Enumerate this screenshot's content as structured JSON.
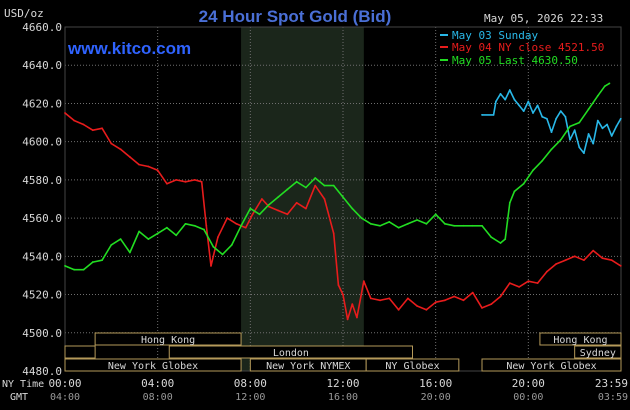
{
  "header": {
    "title": "24 Hour Spot Gold (Bid)",
    "unit": "USD/oz",
    "timestamp": "May 05, 2026 22:33",
    "website": "www.kitco.com"
  },
  "colors": {
    "background": "#000000",
    "grid": "#6f6f6f",
    "title": "#4a6fd6",
    "website": "#2f63ff",
    "text": "#d8d8d8",
    "may03": "#29b8e8",
    "may04": "#e81c1c",
    "may05": "#22dd22",
    "shade": "#1b261b",
    "session_fill": "#000000",
    "session_border": "#b59a5a"
  },
  "legend": {
    "entries": [
      {
        "label": "May 03 Sunday",
        "color": "#29b8e8"
      },
      {
        "label": "May 04 NY close 4521.50",
        "color": "#e81c1c"
      },
      {
        "label": "May 05 Last 4630.50",
        "color": "#22dd22"
      }
    ]
  },
  "axis": {
    "ny_time_label": "NY Time",
    "gmt_label": "GMT",
    "ny_ticks": [
      "00:00",
      "04:00",
      "08:00",
      "12:00",
      "16:00",
      "20:00",
      "23:59"
    ],
    "gmt_ticks": [
      "04:00",
      "08:00",
      "12:00",
      "16:00",
      "20:00",
      "00:00",
      "03:59"
    ]
  },
  "sessions": {
    "row1": [
      {
        "label": "Hong Kong",
        "start": 1.3,
        "end": 7.6
      },
      {
        "label": "Hong Kong",
        "start": 20.5,
        "end": 24
      }
    ],
    "row2": [
      {
        "label": "",
        "start": 0,
        "end": 1.3
      },
      {
        "label": "London",
        "start": 4.5,
        "end": 15.0
      },
      {
        "label": "Sydney",
        "start": 22.0,
        "end": 24
      }
    ],
    "row3": [
      {
        "label": "New York Globex",
        "start": 0,
        "end": 7.6
      },
      {
        "label": "New York NYMEX",
        "start": 8.0,
        "end": 13.0
      },
      {
        "label": "NY Globex",
        "start": 13.0,
        "end": 17.0
      },
      {
        "label": "New York Globex",
        "start": 18.0,
        "end": 24
      }
    ]
  },
  "chart_data": {
    "type": "line",
    "title": "24 Hour Spot Gold (Bid)",
    "ylabel": "USD/oz",
    "xlabel": "",
    "xlim": [
      0,
      24
    ],
    "ylim": [
      4480,
      4660
    ],
    "yticks": [
      4480,
      4500,
      4520,
      4540,
      4560,
      4580,
      4600,
      4620,
      4640,
      4660
    ],
    "ytick_labels": [
      "4480.0",
      "4500.0",
      "4520.0",
      "4540.0",
      "4560.0",
      "4580.0",
      "4600.0",
      "4620.0",
      "4640.0",
      "4660.0"
    ],
    "shaded_region": [
      7.6,
      12.9
    ],
    "grid": true,
    "legend_position": "top-right",
    "series": [
      {
        "name": "May 03 Sunday",
        "color": "#29b8e8",
        "x": [
          18.0,
          18.5,
          18.6,
          18.8,
          19.0,
          19.2,
          19.4,
          19.6,
          19.8,
          20.0,
          20.2,
          20.4,
          20.6,
          20.8,
          21.0,
          21.2,
          21.4,
          21.6,
          21.8,
          22.0,
          22.2,
          22.4,
          22.6,
          22.8,
          23.0,
          23.2,
          23.4,
          23.6,
          23.8,
          23.99
        ],
        "y": [
          4614,
          4614,
          4621,
          4625,
          4622,
          4627,
          4622,
          4619,
          4616,
          4621,
          4615,
          4619,
          4613,
          4612,
          4605,
          4612,
          4616,
          4613,
          4601,
          4606,
          4597,
          4594,
          4604,
          4599,
          4611,
          4607,
          4609,
          4603,
          4608,
          4612
        ]
      },
      {
        "name": "May 04 NY close 4521.50",
        "color": "#e81c1c",
        "x": [
          0,
          0.4,
          0.8,
          1.2,
          1.6,
          2.0,
          2.4,
          2.8,
          3.2,
          3.6,
          4.0,
          4.4,
          4.8,
          5.2,
          5.6,
          5.9,
          6.1,
          6.3,
          6.6,
          7.0,
          7.4,
          7.8,
          8.1,
          8.5,
          8.8,
          9.2,
          9.6,
          10.0,
          10.4,
          10.8,
          11.2,
          11.6,
          11.8,
          12.0,
          12.2,
          12.4,
          12.6,
          12.9,
          13.2,
          13.6,
          14.0,
          14.4,
          14.8,
          15.2,
          15.6,
          16.0,
          16.4,
          16.8,
          17.2,
          17.6,
          18.0,
          18.4,
          18.8,
          19.2,
          19.6,
          20.0,
          20.4,
          20.8,
          21.2,
          21.6,
          22.0,
          22.4,
          22.8,
          23.2,
          23.6,
          23.99
        ],
        "y": [
          4615,
          4611,
          4609,
          4606,
          4607,
          4599,
          4596,
          4592,
          4588,
          4587,
          4585,
          4578,
          4580,
          4579,
          4580,
          4579,
          4556,
          4535,
          4550,
          4560,
          4557,
          4555,
          4562,
          4570,
          4566,
          4564,
          4562,
          4568,
          4565,
          4577,
          4570,
          4552,
          4525,
          4520,
          4507,
          4515,
          4508,
          4527,
          4518,
          4517,
          4518,
          4512,
          4518,
          4514,
          4512,
          4516,
          4517,
          4519,
          4517,
          4521,
          4513,
          4515,
          4519,
          4526,
          4524,
          4527,
          4526,
          4532,
          4536,
          4538,
          4540,
          4538,
          4543,
          4539,
          4538,
          4535
        ]
      },
      {
        "name": "May 05 Last 4630.50",
        "color": "#22dd22",
        "x": [
          0,
          0.4,
          0.8,
          1.2,
          1.6,
          2.0,
          2.4,
          2.8,
          3.2,
          3.6,
          4.0,
          4.4,
          4.8,
          5.2,
          5.6,
          6.0,
          6.4,
          6.8,
          7.2,
          7.6,
          8.0,
          8.4,
          8.8,
          9.2,
          9.6,
          10.0,
          10.4,
          10.8,
          11.2,
          11.6,
          12.0,
          12.4,
          12.8,
          13.2,
          13.6,
          14.0,
          14.4,
          14.8,
          15.2,
          15.6,
          16.0,
          16.4,
          16.8,
          17.2,
          17.6,
          18.0,
          18.4,
          18.8,
          19.0,
          19.2,
          19.4,
          19.8,
          20.2,
          20.6,
          21.0,
          21.4,
          21.8,
          22.2,
          22.6,
          23.0,
          23.3,
          23.5
        ],
        "y": [
          4535,
          4533,
          4533,
          4537,
          4538,
          4546,
          4549,
          4542,
          4553,
          4549,
          4552,
          4555,
          4551,
          4557,
          4556,
          4554,
          4545,
          4541,
          4546,
          4556,
          4565,
          4562,
          4567,
          4571,
          4575,
          4579,
          4576,
          4581,
          4577,
          4577,
          4571,
          4565,
          4560,
          4557,
          4556,
          4558,
          4555,
          4557,
          4559,
          4557,
          4562,
          4557,
          4556,
          4556,
          4556,
          4556,
          4550,
          4547,
          4549,
          4568,
          4574,
          4578,
          4585,
          4590,
          4596,
          4601,
          4608,
          4610,
          4617,
          4624,
          4629,
          4630.5
        ]
      }
    ]
  }
}
